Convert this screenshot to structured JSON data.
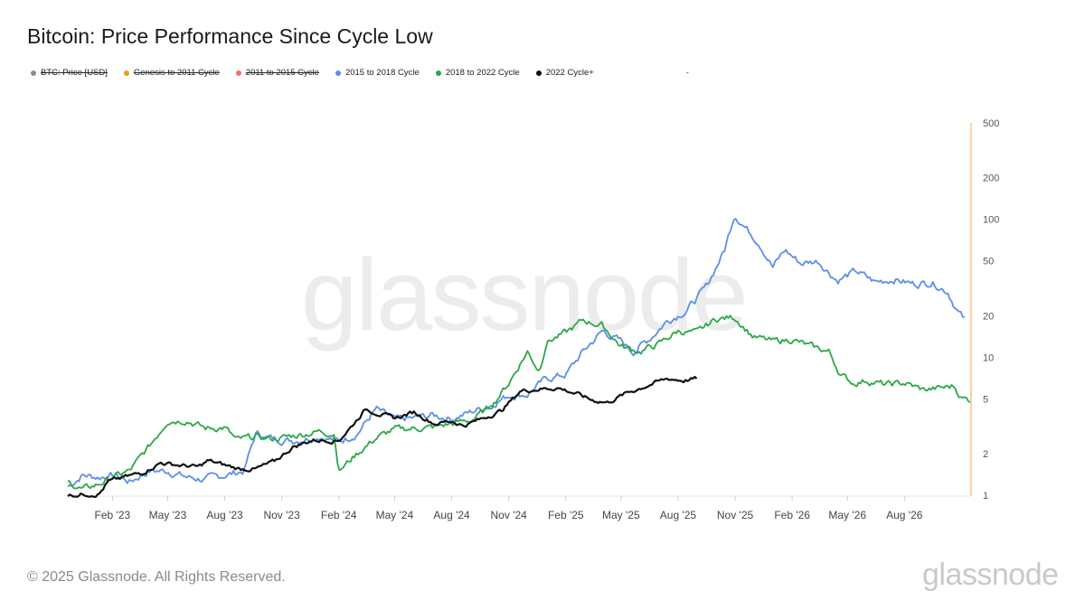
{
  "header": {
    "title": "Bitcoin: Price Performance Since Cycle Low"
  },
  "legend": {
    "items": [
      {
        "label": "BTC: Price [USD]",
        "color": "#8c8c8c",
        "active": false
      },
      {
        "label": "Genesis to 2011 Cycle",
        "color": "#f29a1c",
        "active": false
      },
      {
        "label": "2011 to 2015 Cycle",
        "color": "#f07167",
        "active": false
      },
      {
        "label": "2015 to 2018 Cycle",
        "color": "#5b8fe8",
        "active": true
      },
      {
        "label": "2018 to 2022 Cycle",
        "color": "#2aa847",
        "active": true
      },
      {
        "label": "2022 Cycle+",
        "color": "#111111",
        "active": true
      }
    ],
    "extra": "-"
  },
  "watermark": "glassnode",
  "footer": {
    "copyright": "© 2025 Glassnode. All Rights Reserved.",
    "brand": "glassnode"
  },
  "chart_data": {
    "type": "line",
    "title": "Bitcoin: Price Performance Since Cycle Low",
    "y_scale": "log",
    "ylim": [
      1,
      500
    ],
    "y_ticks": [
      1,
      2,
      5,
      10,
      20,
      50,
      100,
      200,
      500
    ],
    "x_start": "2022-11-21",
    "x_end": "2026-11-15",
    "x_ticks": [
      {
        "label": "Feb '23",
        "date": "2023-02-01"
      },
      {
        "label": "May '23",
        "date": "2023-05-01"
      },
      {
        "label": "Aug '23",
        "date": "2023-08-01"
      },
      {
        "label": "Nov '23",
        "date": "2023-11-01"
      },
      {
        "label": "Feb '24",
        "date": "2024-02-01"
      },
      {
        "label": "May '24",
        "date": "2024-05-01"
      },
      {
        "label": "Aug '24",
        "date": "2024-08-01"
      },
      {
        "label": "Nov '24",
        "date": "2024-11-01"
      },
      {
        "label": "Feb '25",
        "date": "2025-02-01"
      },
      {
        "label": "May '25",
        "date": "2025-05-01"
      },
      {
        "label": "Aug '25",
        "date": "2025-08-01"
      },
      {
        "label": "Nov '25",
        "date": "2025-11-01"
      },
      {
        "label": "Feb '26",
        "date": "2026-02-01"
      },
      {
        "label": "May '26",
        "date": "2026-05-01"
      },
      {
        "label": "Aug '26",
        "date": "2026-08-01"
      }
    ],
    "series": [
      {
        "name": "2015 to 2018 Cycle",
        "color": "#5b8fe8",
        "noise": 0.045,
        "points": [
          [
            "2022-11-21",
            1.15
          ],
          [
            "2022-12-15",
            1.4
          ],
          [
            "2023-01-10",
            1.35
          ],
          [
            "2023-02-05",
            1.4
          ],
          [
            "2023-03-01",
            1.25
          ],
          [
            "2023-04-01",
            1.5
          ],
          [
            "2023-05-01",
            1.5
          ],
          [
            "2023-06-01",
            1.35
          ],
          [
            "2023-07-01",
            1.3
          ],
          [
            "2023-08-01",
            1.4
          ],
          [
            "2023-09-01",
            1.5
          ],
          [
            "2023-09-20",
            2.8
          ],
          [
            "2023-10-20",
            2.55
          ],
          [
            "2023-11-20",
            2.5
          ],
          [
            "2024-01-01",
            2.7
          ],
          [
            "2024-02-01",
            2.45
          ],
          [
            "2024-03-01",
            2.8
          ],
          [
            "2024-04-01",
            4.2
          ],
          [
            "2024-05-01",
            3.5
          ],
          [
            "2024-06-01",
            3.6
          ],
          [
            "2024-07-01",
            3.8
          ],
          [
            "2024-08-01",
            3.6
          ],
          [
            "2024-09-01",
            4.0
          ],
          [
            "2024-10-01",
            4.5
          ],
          [
            "2024-11-01",
            5.3
          ],
          [
            "2024-12-01",
            5.4
          ],
          [
            "2025-01-01",
            7.0
          ],
          [
            "2025-02-01",
            7.5
          ],
          [
            "2025-03-01",
            11.0
          ],
          [
            "2025-04-01",
            15.5
          ],
          [
            "2025-05-01",
            13.0
          ],
          [
            "2025-05-20",
            11.0
          ],
          [
            "2025-06-15",
            13.5
          ],
          [
            "2025-07-15",
            18.5
          ],
          [
            "2025-08-15",
            22.0
          ],
          [
            "2025-09-15",
            32.0
          ],
          [
            "2025-10-15",
            60.0
          ],
          [
            "2025-10-31",
            110.0
          ],
          [
            "2025-11-20",
            85.0
          ],
          [
            "2025-12-10",
            68.0
          ],
          [
            "2026-01-01",
            45.0
          ],
          [
            "2026-01-20",
            60.0
          ],
          [
            "2026-02-15",
            48.0
          ],
          [
            "2026-03-15",
            50.0
          ],
          [
            "2026-04-15",
            36.0
          ],
          [
            "2026-05-15",
            42.0
          ],
          [
            "2026-06-15",
            35.0
          ],
          [
            "2026-07-15",
            37.0
          ],
          [
            "2026-08-15",
            34.0
          ],
          [
            "2026-09-15",
            35.0
          ],
          [
            "2026-10-10",
            30.0
          ],
          [
            "2026-10-25",
            22.0
          ],
          [
            "2026-11-06",
            18.5
          ]
        ]
      },
      {
        "name": "2018 to 2022 Cycle",
        "color": "#2aa847",
        "noise": 0.04,
        "points": [
          [
            "2022-11-21",
            1.25
          ],
          [
            "2022-12-15",
            1.1
          ],
          [
            "2023-01-10",
            1.2
          ],
          [
            "2023-02-01",
            1.35
          ],
          [
            "2023-03-01",
            1.5
          ],
          [
            "2023-04-01",
            2.25
          ],
          [
            "2023-05-01",
            3.5
          ],
          [
            "2023-06-01",
            3.5
          ],
          [
            "2023-07-01",
            3.05
          ],
          [
            "2023-08-01",
            3.1
          ],
          [
            "2023-08-20",
            2.5
          ],
          [
            "2023-09-20",
            2.65
          ],
          [
            "2023-10-20",
            2.55
          ],
          [
            "2023-11-20",
            2.7
          ],
          [
            "2024-01-01",
            2.9
          ],
          [
            "2024-01-25",
            2.8
          ],
          [
            "2024-02-01",
            1.5
          ],
          [
            "2024-03-01",
            2.0
          ],
          [
            "2024-04-01",
            2.6
          ],
          [
            "2024-05-01",
            3.0
          ],
          [
            "2024-06-01",
            3.05
          ],
          [
            "2024-07-01",
            3.1
          ],
          [
            "2024-08-01",
            3.3
          ],
          [
            "2024-09-01",
            3.5
          ],
          [
            "2024-10-01",
            4.3
          ],
          [
            "2024-11-01",
            6.5
          ],
          [
            "2024-12-01",
            11.0
          ],
          [
            "2024-12-20",
            8.0
          ],
          [
            "2025-01-01",
            13.0
          ],
          [
            "2025-02-01",
            15.0
          ],
          [
            "2025-03-01",
            18.5
          ],
          [
            "2025-04-01",
            17.0
          ],
          [
            "2025-05-01",
            12.0
          ],
          [
            "2025-06-01",
            11.0
          ],
          [
            "2025-07-01",
            12.5
          ],
          [
            "2025-08-01",
            15.5
          ],
          [
            "2025-09-01",
            15.0
          ],
          [
            "2025-10-01",
            19.0
          ],
          [
            "2025-11-01",
            19.5
          ],
          [
            "2025-12-01",
            14.0
          ],
          [
            "2026-01-01",
            13.0
          ],
          [
            "2026-02-01",
            13.5
          ],
          [
            "2026-03-01",
            12.0
          ],
          [
            "2026-04-01",
            11.0
          ],
          [
            "2026-04-20",
            7.5
          ],
          [
            "2026-05-10",
            6.5
          ],
          [
            "2026-06-01",
            6.8
          ],
          [
            "2026-07-01",
            6.3
          ],
          [
            "2026-08-01",
            6.5
          ],
          [
            "2026-09-01",
            5.8
          ],
          [
            "2026-10-01",
            6.0
          ],
          [
            "2026-10-20",
            6.2
          ],
          [
            "2026-11-01",
            5.1
          ],
          [
            "2026-11-15",
            4.9
          ]
        ]
      },
      {
        "name": "2022 Cycle+",
        "color": "#111111",
        "noise": 0.025,
        "points": [
          [
            "2022-11-21",
            1.0
          ],
          [
            "2022-12-20",
            1.02
          ],
          [
            "2023-01-10",
            1.02
          ],
          [
            "2023-01-25",
            1.25
          ],
          [
            "2023-02-20",
            1.35
          ],
          [
            "2023-03-20",
            1.45
          ],
          [
            "2023-04-20",
            1.72
          ],
          [
            "2023-05-20",
            1.65
          ],
          [
            "2023-06-20",
            1.6
          ],
          [
            "2023-07-05",
            1.78
          ],
          [
            "2023-08-01",
            1.65
          ],
          [
            "2023-08-25",
            1.55
          ],
          [
            "2023-09-20",
            1.55
          ],
          [
            "2023-10-20",
            1.75
          ],
          [
            "2023-11-20",
            2.25
          ],
          [
            "2023-12-20",
            2.5
          ],
          [
            "2024-01-20",
            2.5
          ],
          [
            "2024-02-01",
            2.5
          ],
          [
            "2024-02-20",
            3.1
          ],
          [
            "2024-03-15",
            4.2
          ],
          [
            "2024-04-15",
            3.8
          ],
          [
            "2024-05-01",
            3.6
          ],
          [
            "2024-06-01",
            4.0
          ],
          [
            "2024-07-05",
            3.3
          ],
          [
            "2024-08-01",
            3.45
          ],
          [
            "2024-08-20",
            3.2
          ],
          [
            "2024-09-20",
            3.6
          ],
          [
            "2024-10-20",
            4.1
          ],
          [
            "2024-11-20",
            5.7
          ],
          [
            "2024-12-20",
            5.9
          ],
          [
            "2025-01-20",
            6.0
          ],
          [
            "2025-02-20",
            5.4
          ],
          [
            "2025-03-15",
            4.9
          ],
          [
            "2025-04-10",
            4.7
          ],
          [
            "2025-05-10",
            5.5
          ],
          [
            "2025-06-15",
            6.3
          ],
          [
            "2025-07-15",
            7.0
          ],
          [
            "2025-08-10",
            6.8
          ],
          [
            "2025-08-31",
            7.0
          ]
        ]
      }
    ]
  }
}
